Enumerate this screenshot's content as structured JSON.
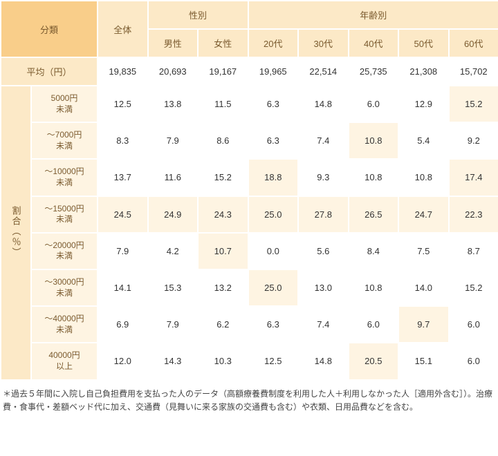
{
  "headers": {
    "category": "分類",
    "overall": "全体",
    "gender": "性別",
    "age": "年齢別",
    "male": "男性",
    "female": "女性",
    "age20": "20代",
    "age30": "30代",
    "age40": "40代",
    "age50": "50代",
    "age60": "60代",
    "avg": "平均（円）",
    "ratio": "割合（％）"
  },
  "rowLabels": [
    "5000円\n未満",
    "〜7000円\n未満",
    "〜10000円\n未満",
    "〜15000円\n未満",
    "〜20000円\n未満",
    "〜30000円\n未満",
    "〜40000円\n未満",
    "40000円\n以上"
  ],
  "avgRow": [
    "19,835",
    "20,693",
    "19,167",
    "19,965",
    "22,514",
    "25,735",
    "21,308",
    "15,702"
  ],
  "rows": [
    [
      "12.5",
      "13.8",
      "11.5",
      "6.3",
      "14.8",
      "6.0",
      "12.9",
      "15.2"
    ],
    [
      "8.3",
      "7.9",
      "8.6",
      "6.3",
      "7.4",
      "10.8",
      "5.4",
      "9.2"
    ],
    [
      "13.7",
      "11.6",
      "15.2",
      "18.8",
      "9.3",
      "10.8",
      "10.8",
      "17.4"
    ],
    [
      "24.5",
      "24.9",
      "24.3",
      "25.0",
      "27.8",
      "26.5",
      "24.7",
      "22.3"
    ],
    [
      "7.9",
      "4.2",
      "10.7",
      "0.0",
      "5.6",
      "8.4",
      "7.5",
      "8.7"
    ],
    [
      "14.1",
      "15.3",
      "13.2",
      "25.0",
      "13.0",
      "10.8",
      "14.0",
      "15.2"
    ],
    [
      "6.9",
      "7.9",
      "6.2",
      "6.3",
      "7.4",
      "6.0",
      "9.7",
      "6.0"
    ],
    [
      "12.0",
      "14.3",
      "10.3",
      "12.5",
      "14.8",
      "20.5",
      "15.1",
      "6.0"
    ]
  ],
  "maxFlags": [
    [
      false,
      false,
      false,
      false,
      false,
      false,
      false,
      true
    ],
    [
      false,
      false,
      false,
      false,
      false,
      true,
      false,
      false
    ],
    [
      false,
      false,
      false,
      true,
      false,
      false,
      false,
      true
    ],
    [
      true,
      true,
      true,
      true,
      true,
      true,
      true,
      true
    ],
    [
      false,
      false,
      true,
      false,
      false,
      false,
      false,
      false
    ],
    [
      false,
      false,
      false,
      true,
      false,
      false,
      false,
      false
    ],
    [
      false,
      false,
      false,
      false,
      false,
      false,
      true,
      false
    ],
    [
      false,
      false,
      false,
      false,
      false,
      true,
      false,
      false
    ]
  ],
  "colors": {
    "hDark": "#f9ce8a",
    "hMid": "#fce9c7",
    "hLight": "#fef4e2",
    "border": "#ffffff",
    "headerText": "#7a5a2e",
    "cellText": "#333333",
    "noteText": "#444444"
  },
  "footnote": "＊過去５年間に入院し自己負担費用を支払った人のデータ（高額療養費制度を利用した人＋利用しなかった人［適用外含む］）。治療費・食事代・差額ベッド代に加え、交通費（見舞いに来る家族の交通費も含む）や衣類、日用品費などを含む。"
}
